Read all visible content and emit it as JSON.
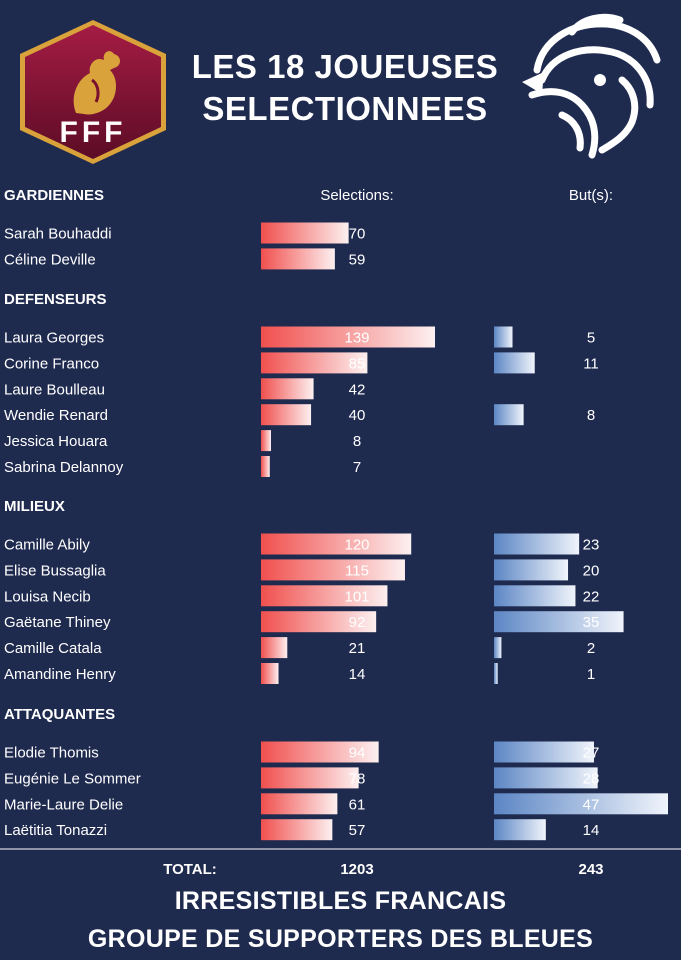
{
  "header": {
    "title_line1": "LES 18 JOUEUSES",
    "title_line2": "SELECTIONNEES",
    "crest_text": "FFF"
  },
  "colors": {
    "background": "#1f2a4f",
    "selection_bar_start": "#f0504e",
    "selection_bar_end": "#fdf0f0",
    "goals_bar_start": "#5c86c4",
    "goals_bar_end": "#f0f4fb",
    "crest_dark": "#7a1030",
    "crest_gold": "#d9a23a"
  },
  "chart_data": {
    "type": "bar",
    "columns": {
      "selections": "Selections:",
      "goals": "But(s):"
    },
    "groups": [
      {
        "name": "GARDIENNES",
        "players": [
          {
            "name": "Sarah Bouhaddi",
            "selections": 70,
            "goals": null
          },
          {
            "name": "Céline Deville",
            "selections": 59,
            "goals": null
          }
        ]
      },
      {
        "name": "DEFENSEURS",
        "players": [
          {
            "name": "Laura Georges",
            "selections": 139,
            "goals": 5
          },
          {
            "name": "Corine Franco",
            "selections": 85,
            "goals": 11
          },
          {
            "name": "Laure Boulleau",
            "selections": 42,
            "goals": null
          },
          {
            "name": "Wendie Renard",
            "selections": 40,
            "goals": 8
          },
          {
            "name": "Jessica Houara",
            "selections": 8,
            "goals": null
          },
          {
            "name": "Sabrina Delannoy",
            "selections": 7,
            "goals": null
          }
        ]
      },
      {
        "name": "MILIEUX",
        "players": [
          {
            "name": "Camille Abily",
            "selections": 120,
            "goals": 23
          },
          {
            "name": "Elise Bussaglia",
            "selections": 115,
            "goals": 20
          },
          {
            "name": "Louisa Necib",
            "selections": 101,
            "goals": 22
          },
          {
            "name": "Gaëtane Thiney",
            "selections": 92,
            "goals": 35
          },
          {
            "name": "Camille Catala",
            "selections": 21,
            "goals": 2
          },
          {
            "name": "Amandine Henry",
            "selections": 14,
            "goals": 1
          }
        ]
      },
      {
        "name": "ATTAQUANTES",
        "players": [
          {
            "name": "Elodie Thomis",
            "selections": 94,
            "goals": 27
          },
          {
            "name": "Eugénie Le Sommer",
            "selections": 78,
            "goals": 28
          },
          {
            "name": "Marie-Laure Delie",
            "selections": 61,
            "goals": 47
          },
          {
            "name": "Laëtitia Tonazzi",
            "selections": 57,
            "goals": 14
          }
        ]
      }
    ],
    "total_label": "TOTAL:",
    "total_selections": 1203,
    "total_goals": 243
  },
  "footer": {
    "line1": "IRRESISTIBLES FRANCAIS",
    "line2": "GROUPE DE SUPPORTERS DES BLEUES"
  }
}
